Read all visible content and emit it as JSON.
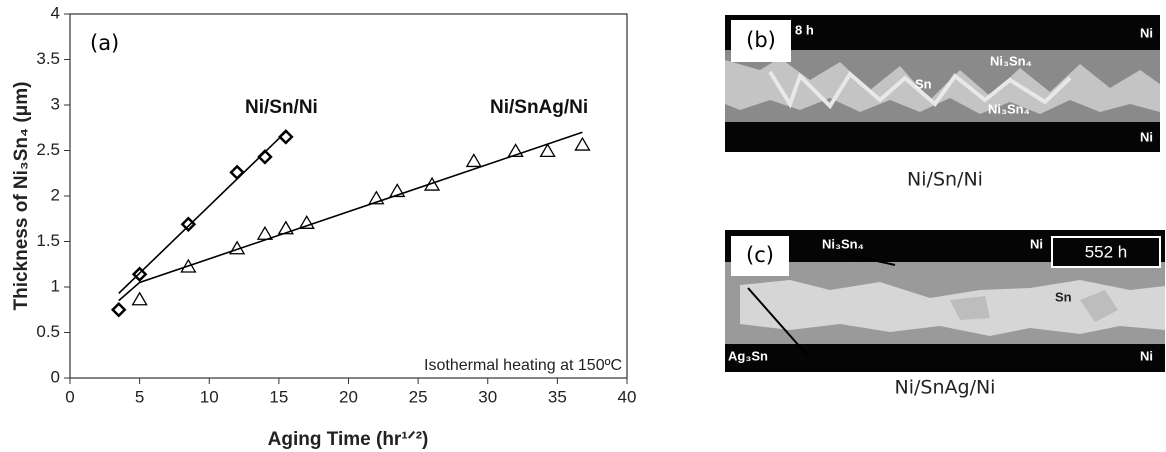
{
  "chart_data": {
    "type": "scatter",
    "panel_label": "(a)",
    "x_label": "Aging Time (hr¹ᐟ²)",
    "y_label": "Thickness of Ni₃Sn₄ (μm)",
    "annotation": "Isothermal heating at 150ºC",
    "xlim": [
      0,
      40
    ],
    "xticks": [
      0,
      5,
      10,
      15,
      20,
      25,
      30,
      35,
      40
    ],
    "ylim": [
      0,
      4
    ],
    "yticks": [
      0,
      0.5,
      1,
      1.5,
      2,
      2.5,
      3,
      3.5,
      4
    ],
    "series": [
      {
        "name": "Ni/Sn/Ni",
        "color": "#000000",
        "marker": "diamond",
        "x": [
          3.5,
          5,
          8.5,
          12,
          14,
          15.5
        ],
        "values": [
          0.75,
          1.14,
          1.69,
          2.26,
          2.43,
          2.65
        ],
        "fit": {
          "x": [
            3.5,
            15.6
          ],
          "values": [
            0.93,
            2.72
          ]
        }
      },
      {
        "name": "Ni/SnAg/Ni",
        "color": "#000000",
        "marker": "triangle",
        "x": [
          5,
          8.5,
          12,
          14,
          15.5,
          17,
          22,
          23.5,
          26,
          29,
          32,
          34.3,
          36.8
        ],
        "values": [
          0.86,
          1.22,
          1.42,
          1.58,
          1.64,
          1.7,
          1.97,
          2.05,
          2.12,
          2.38,
          2.49,
          2.49,
          2.56
        ],
        "fit": {
          "x": [
            3.5,
            5,
            36.8
          ],
          "values": [
            0.85,
            1.05,
            2.7
          ]
        }
      }
    ]
  },
  "panels": [
    {
      "label": "(b)",
      "time": "8 h",
      "labels": [
        "Ni",
        "Ni₃Sn₄",
        "Sn",
        "Ni₃Sn₄",
        "Ni"
      ],
      "caption": "Ni/Sn/Ni"
    },
    {
      "label": "(c)",
      "time": "552 h",
      "labels": [
        "Ni₃Sn₄",
        "Ni",
        "Sn",
        "Ag₃Sn",
        "Ni"
      ],
      "caption": "Ni/SnAg/Ni"
    }
  ]
}
